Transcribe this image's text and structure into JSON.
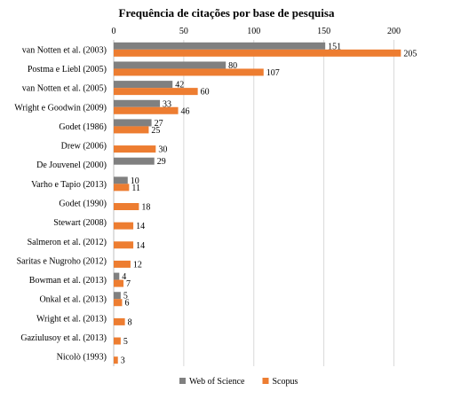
{
  "chart_data": {
    "type": "bar",
    "orientation": "horizontal",
    "title": "Frequência  de citações por base de pesquisa",
    "xlim": [
      0,
      220
    ],
    "xticks": [
      0,
      50,
      100,
      150,
      200
    ],
    "grid": true,
    "legend_position": "bottom",
    "categories": [
      "van Notten et al. (2003)",
      "Postma e Liebl (2005)",
      "van Notten et al. (2005)",
      "Wright e Goodwin (2009)",
      "Godet (1986)",
      "Drew (2006)",
      "De Jouvenel (2000)",
      "Varho  e Tapio (2013)",
      "Godet (1990)",
      "Stewart (2008)",
      "Salmeron  et al. (2012)",
      "Saritas  e Nugroho (2012)",
      "Bowman  et al. (2013)",
      "Onkal et al. (2013)",
      "Wright et al. (2013)",
      "Gaziulusoy  et al. (2013)",
      "Nicolò  (1993)"
    ],
    "series": [
      {
        "name": "Web of Science",
        "color": "#808080",
        "values": [
          151,
          80,
          42,
          33,
          27,
          null,
          29,
          10,
          null,
          null,
          null,
          null,
          4,
          5,
          null,
          null,
          null
        ]
      },
      {
        "name": "Scopus",
        "color": "#ed7d31",
        "values": [
          205,
          107,
          60,
          46,
          25,
          30,
          null,
          11,
          18,
          14,
          14,
          12,
          7,
          6,
          8,
          5,
          3
        ]
      }
    ]
  }
}
